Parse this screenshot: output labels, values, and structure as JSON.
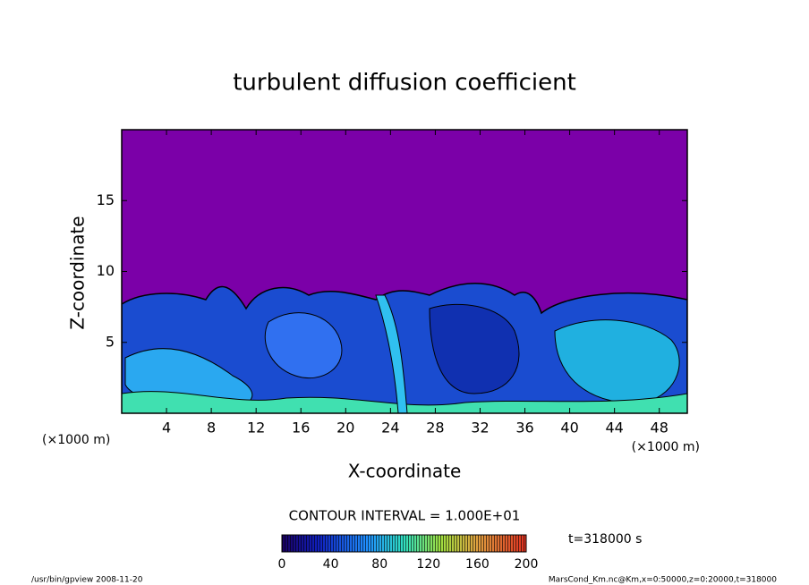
{
  "chart_data": {
    "type": "contour",
    "title": "turbulent diffusion coefficient",
    "xlabel": "X-coordinate",
    "ylabel": "Z-coordinate",
    "xunit": "(×1000 m)",
    "yunit": "(×1000 m)",
    "xlim": [
      0,
      50.5
    ],
    "xticks": [
      4,
      8,
      12,
      16,
      20,
      24,
      28,
      32,
      36,
      40,
      44,
      48
    ],
    "ylim": [
      0,
      20
    ],
    "yticks": [
      5,
      10,
      15
    ],
    "background_color": "#7b00a8",
    "colorbar": {
      "label": "CONTOUR INTERVAL = 1.000E+01",
      "lim": [
        0,
        200
      ],
      "ticks": [
        0,
        40,
        80,
        120,
        160,
        200
      ]
    },
    "time_label": "t=318000 s",
    "footer_left": "/usr/bin/gpview  2008-11-20",
    "footer_right": "MarsCond_Km.nc@Km,x=0:50000,z=0:20000,t=318000"
  }
}
